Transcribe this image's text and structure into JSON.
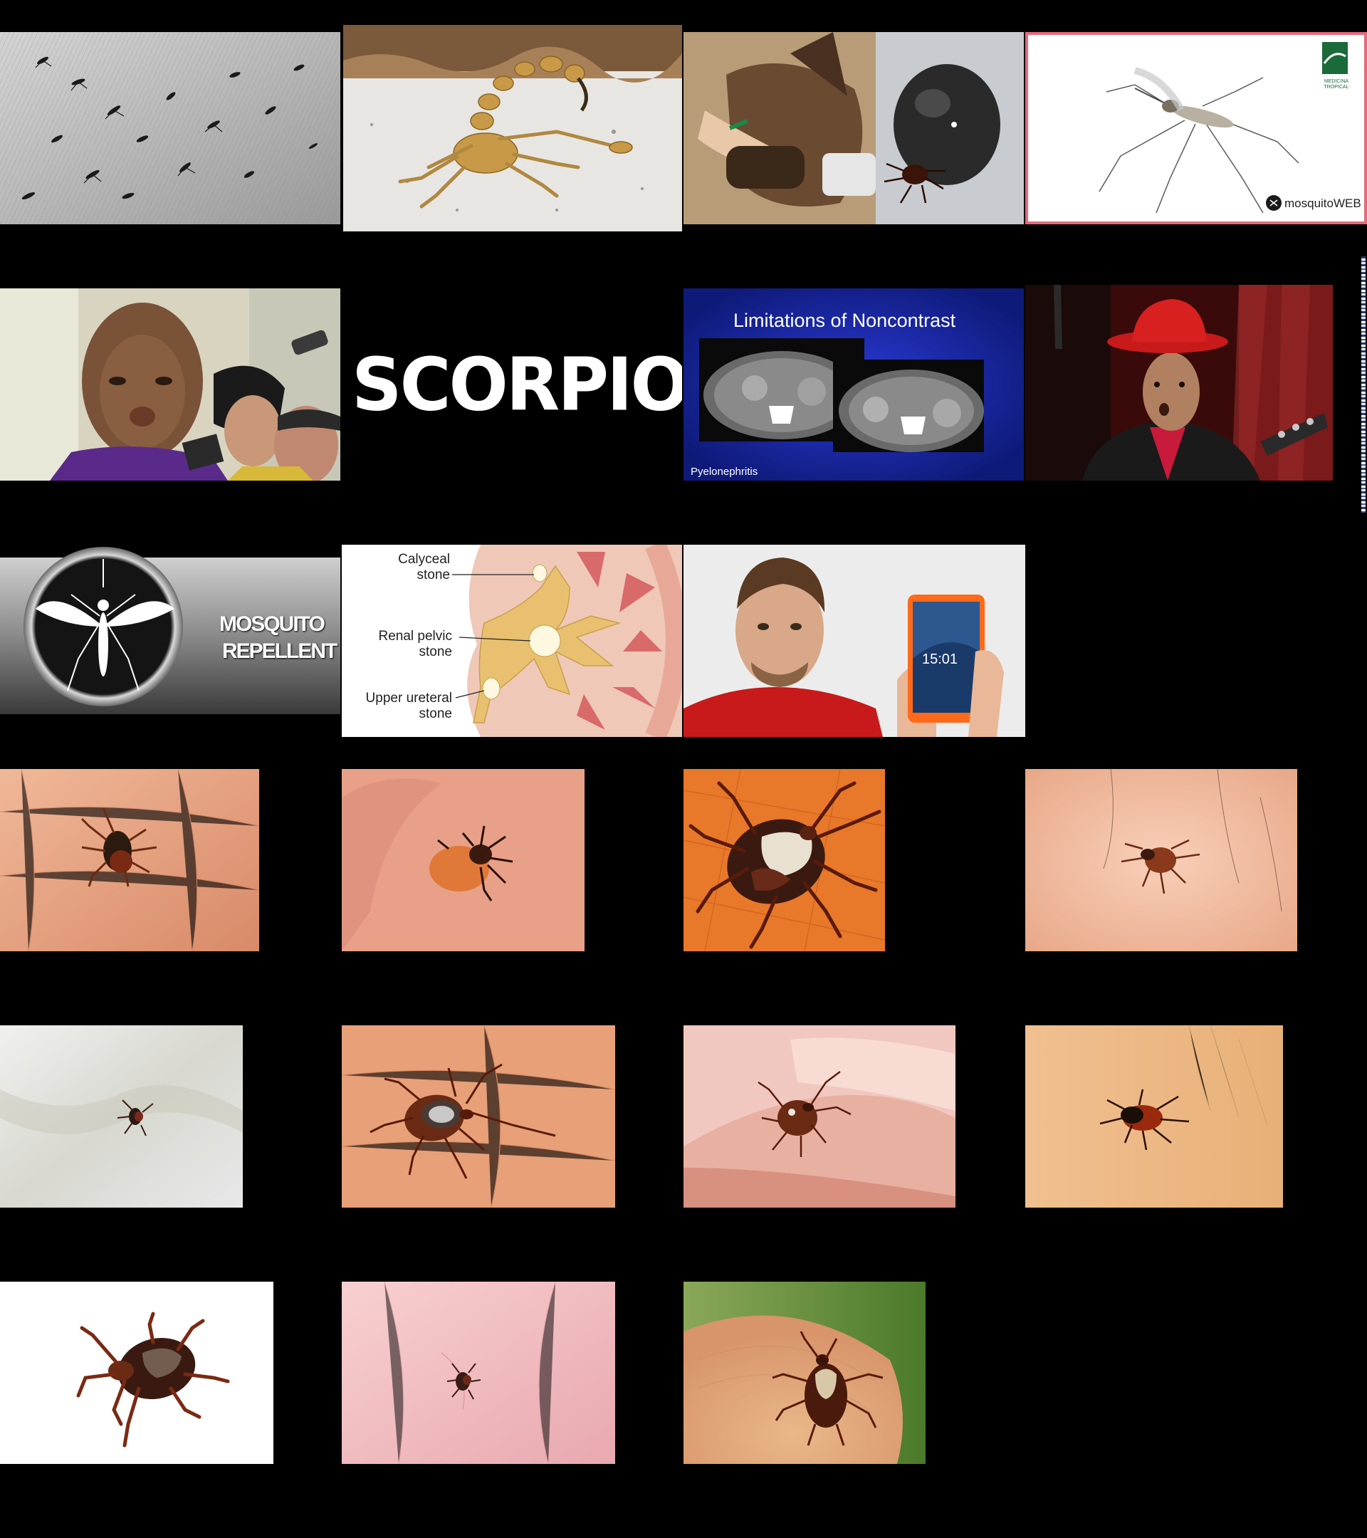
{
  "grid": {
    "rows": 6,
    "tiles": [
      {
        "id": "r1c1",
        "subject": "mosquito swarm on mesh"
      },
      {
        "id": "r1c2",
        "subject": "scorpion on sand"
      },
      {
        "id": "r1c3",
        "subject": "engorged tick on dog"
      },
      {
        "id": "r1c4",
        "subject": "mosquito illustration",
        "brand": "mosquitoWEB",
        "side_text": "MEDICINA TROPICAL"
      },
      {
        "id": "r2c1",
        "subject": "man with reporters"
      },
      {
        "id": "r2c2",
        "subject": "band logo",
        "logo_text": "SCORPIONS"
      },
      {
        "id": "r2c3",
        "subject": "CT scan slide",
        "title": "Limitations of Noncontrast",
        "caption": "Pyelonephritis"
      },
      {
        "id": "r2c4",
        "subject": "performer in red hat"
      },
      {
        "id": "r3c1",
        "subject": "mosquito repellent logo",
        "label_line1": "MOSQUITO",
        "label_line2": "REPELLENT"
      },
      {
        "id": "r3c2",
        "subject": "kidney stones diagram",
        "labels": [
          {
            "line1": "Calyceal",
            "line2": "stone"
          },
          {
            "line1": "Renal pelvic",
            "line2": "stone"
          },
          {
            "line1": "Upper ureteral",
            "line2": "stone"
          }
        ]
      },
      {
        "id": "r3c3",
        "subject": "man holding phone",
        "phone_time": "15:01"
      },
      {
        "id": "r4c1",
        "subject": "tick on skin"
      },
      {
        "id": "r4c2",
        "subject": "engorged tick on skin"
      },
      {
        "id": "r4c3",
        "subject": "dog tick close-up"
      },
      {
        "id": "r4c4",
        "subject": "small tick on skin"
      },
      {
        "id": "r5c1",
        "subject": "tiny tick on white cloth"
      },
      {
        "id": "r5c2",
        "subject": "tick on skin"
      },
      {
        "id": "r5c3",
        "subject": "lone star tick on finger"
      },
      {
        "id": "r5c4",
        "subject": "blacklegged tick on skin"
      },
      {
        "id": "r6c1",
        "subject": "tick on white background"
      },
      {
        "id": "r6c2",
        "subject": "tiny tick on skin"
      },
      {
        "id": "r6c3",
        "subject": "tick on fingertip"
      }
    ]
  },
  "colors": {
    "background": "#000000",
    "skin": "#e8a888",
    "tick_body": "#3a1a0e",
    "tick_leg": "#7a2a12",
    "ct_slide_blue": "#1a2a9a"
  }
}
